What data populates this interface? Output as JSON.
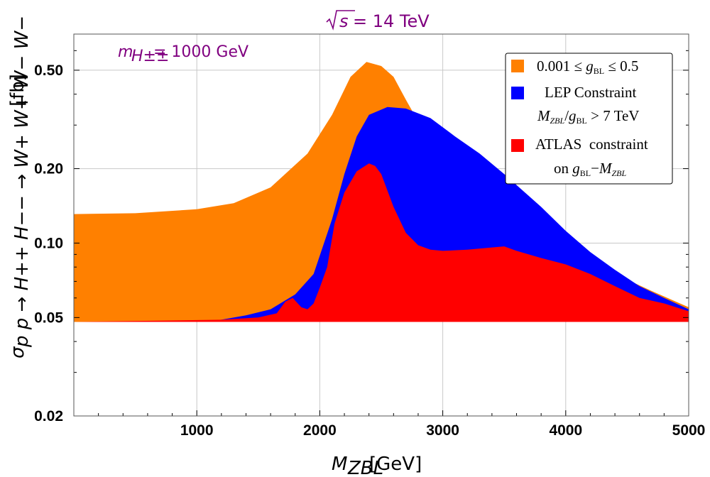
{
  "chart_data": {
    "type": "area",
    "title": "√s = 14 TeV",
    "title_parts": {
      "radical": "√",
      "variable": "s",
      "rest": " = 14 TeV"
    },
    "annotation": {
      "label": "m",
      "subscript": "H±±",
      "value": " = 1000 GeV"
    },
    "xlabel": {
      "main": "M",
      "sub": "ZBL",
      "unit": " [GeV]"
    },
    "ylabel": "σpp → H++H−− → W+W+W−W− [fb]",
    "ylabel_parts": {
      "sigma": "σ",
      "sub": "p p → H++ H−− → W+ W+ W− W−",
      "unit": " [fb]"
    },
    "xlim": [
      0,
      5000
    ],
    "ylim": [
      0.02,
      0.7
    ],
    "yscale": "log",
    "x_ticks": [
      1000,
      2000,
      3000,
      4000,
      5000
    ],
    "x_tick_labels": [
      "1000",
      "2000",
      "3000",
      "4000",
      "5000"
    ],
    "y_ticks": [
      0.02,
      0.05,
      0.1,
      0.2,
      0.5
    ],
    "y_tick_labels": [
      "0.02",
      "0.05",
      "0.10",
      "0.20",
      "0.50"
    ],
    "grid": true,
    "legend_position": "top-right",
    "series": [
      {
        "name": "0.001 ≤ gBL ≤ 0.5",
        "color": "#FF8000",
        "lower": [
          [
            0,
            0.048
          ],
          [
            5000,
            0.048
          ]
        ],
        "upper": [
          [
            0,
            0.131
          ],
          [
            500,
            0.132
          ],
          [
            1000,
            0.137
          ],
          [
            1300,
            0.145
          ],
          [
            1600,
            0.168
          ],
          [
            1900,
            0.23
          ],
          [
            2100,
            0.33
          ],
          [
            2250,
            0.47
          ],
          [
            2380,
            0.54
          ],
          [
            2500,
            0.52
          ],
          [
            2600,
            0.47
          ],
          [
            2700,
            0.38
          ],
          [
            2800,
            0.31
          ],
          [
            2900,
            0.255
          ],
          [
            3000,
            0.225
          ],
          [
            3200,
            0.18
          ],
          [
            3500,
            0.145
          ],
          [
            3800,
            0.115
          ],
          [
            4100,
            0.092
          ],
          [
            4400,
            0.075
          ],
          [
            4700,
            0.064
          ],
          [
            5000,
            0.055
          ]
        ]
      },
      {
        "name": "LEP Constraint MZBL/gBL > 7 TeV",
        "color": "#0000FF",
        "lower": [
          [
            0,
            0.048
          ],
          [
            5000,
            0.048
          ]
        ],
        "upper": [
          [
            0,
            0.048
          ],
          [
            1000,
            0.048
          ],
          [
            1200,
            0.049
          ],
          [
            1400,
            0.051
          ],
          [
            1600,
            0.054
          ],
          [
            1800,
            0.062
          ],
          [
            1950,
            0.075
          ],
          [
            2100,
            0.125
          ],
          [
            2200,
            0.19
          ],
          [
            2300,
            0.27
          ],
          [
            2400,
            0.33
          ],
          [
            2550,
            0.355
          ],
          [
            2700,
            0.35
          ],
          [
            2900,
            0.32
          ],
          [
            3100,
            0.27
          ],
          [
            3300,
            0.23
          ],
          [
            3500,
            0.19
          ],
          [
            3800,
            0.14
          ],
          [
            4000,
            0.112
          ],
          [
            4200,
            0.092
          ],
          [
            4400,
            0.078
          ],
          [
            4600,
            0.067
          ],
          [
            4800,
            0.06
          ],
          [
            5000,
            0.054
          ]
        ]
      },
      {
        "name": "ATLAS constraint on gBL−MZBL",
        "color": "#FF0000",
        "lower": [
          [
            0,
            0.048
          ],
          [
            5000,
            0.048
          ]
        ],
        "upper": [
          [
            0,
            0.048
          ],
          [
            1200,
            0.049
          ],
          [
            1500,
            0.05
          ],
          [
            1650,
            0.052
          ],
          [
            1720,
            0.058
          ],
          [
            1780,
            0.06
          ],
          [
            1850,
            0.055
          ],
          [
            1900,
            0.054
          ],
          [
            1950,
            0.057
          ],
          [
            2000,
            0.066
          ],
          [
            2060,
            0.08
          ],
          [
            2120,
            0.12
          ],
          [
            2200,
            0.16
          ],
          [
            2300,
            0.195
          ],
          [
            2400,
            0.21
          ],
          [
            2450,
            0.205
          ],
          [
            2500,
            0.19
          ],
          [
            2600,
            0.14
          ],
          [
            2700,
            0.11
          ],
          [
            2800,
            0.098
          ],
          [
            2900,
            0.094
          ],
          [
            3000,
            0.093
          ],
          [
            3200,
            0.094
          ],
          [
            3400,
            0.096
          ],
          [
            3500,
            0.097
          ],
          [
            3600,
            0.093
          ],
          [
            3800,
            0.087
          ],
          [
            4000,
            0.082
          ],
          [
            4200,
            0.075
          ],
          [
            4400,
            0.067
          ],
          [
            4600,
            0.06
          ],
          [
            4800,
            0.057
          ],
          [
            5000,
            0.053
          ]
        ]
      }
    ],
    "legend": [
      {
        "swatch": "#FF8000",
        "text": "0.001 ≤ gBL ≤ 0.5",
        "parts": [
          "0.001 ≤ ",
          "g",
          "BL",
          " ≤ 0.5"
        ]
      },
      {
        "swatch": "#0000FF",
        "text": "LEP Constraint",
        "line2_parts": [
          "M",
          "ZBL",
          "/",
          "g",
          "BL",
          " > 7 TeV"
        ]
      },
      {
        "swatch": "#FF0000",
        "text": "ATLAS  constraint",
        "line2_parts": [
          "on ",
          "g",
          "BL",
          "−",
          "M",
          "ZBL"
        ]
      }
    ]
  }
}
